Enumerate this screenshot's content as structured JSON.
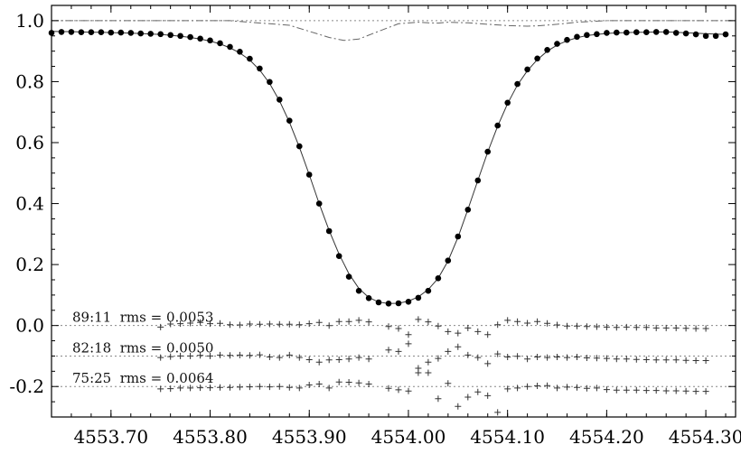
{
  "chart_data": {
    "type": "scatter",
    "title": "",
    "xlabel": "",
    "ylabel": "",
    "xlim": [
      4553.64,
      4554.33
    ],
    "ylim": [
      -0.3,
      1.05
    ],
    "xticks": [
      4553.7,
      4553.8,
      4553.9,
      4554.0,
      4554.1,
      4554.2,
      4554.3
    ],
    "xtick_labels": [
      "4553.70",
      "4553.80",
      "4553.90",
      "4554.00",
      "4554.10",
      "4554.20",
      "4554.30"
    ],
    "yticks": [
      -0.2,
      0.0,
      0.2,
      0.4,
      0.6,
      0.8,
      1.0
    ],
    "ytick_labels": [
      "-0.2",
      "0.0",
      "0.2",
      "0.4",
      "0.6",
      "0.8",
      "1.0"
    ],
    "grid": false,
    "reference_lines": [
      1.0,
      0.0,
      -0.1,
      -0.2
    ],
    "annotations": [
      "89:11  rms = 0.0053",
      "82:18  rms = 0.0050",
      "75:25  rms = 0.0064"
    ],
    "observed_points": {
      "x": [
        4553.64,
        4553.65,
        4553.66,
        4553.67,
        4553.68,
        4553.69,
        4553.7,
        4553.71,
        4553.72,
        4553.73,
        4553.74,
        4553.75,
        4553.76,
        4553.77,
        4553.78,
        4553.79,
        4553.8,
        4553.81,
        4553.82,
        4553.83,
        4553.84,
        4553.85,
        4553.86,
        4553.87,
        4553.88,
        4553.89,
        4553.9,
        4553.91,
        4553.92,
        4553.93,
        4553.94,
        4553.95,
        4553.96,
        4553.97,
        4553.98,
        4553.99,
        4554.0,
        4554.01,
        4554.02,
        4554.03,
        4554.04,
        4554.05,
        4554.06,
        4554.07,
        4554.08,
        4554.09,
        4554.1,
        4554.11,
        4554.12,
        4554.13,
        4554.14,
        4554.15,
        4554.16,
        4554.17,
        4554.18,
        4554.19,
        4554.2,
        4554.21,
        4554.22,
        4554.23,
        4554.24,
        4554.25,
        4554.26,
        4554.27,
        4554.28,
        4554.29,
        4554.3,
        4554.31,
        4554.32
      ],
      "y": [
        0.96,
        0.963,
        0.963,
        0.962,
        0.962,
        0.962,
        0.961,
        0.961,
        0.96,
        0.958,
        0.957,
        0.956,
        0.953,
        0.95,
        0.946,
        0.941,
        0.935,
        0.926,
        0.914,
        0.898,
        0.875,
        0.843,
        0.799,
        0.741,
        0.672,
        0.588,
        0.495,
        0.4,
        0.31,
        0.228,
        0.16,
        0.114,
        0.09,
        0.076,
        0.072,
        0.073,
        0.078,
        0.091,
        0.114,
        0.155,
        0.213,
        0.292,
        0.38,
        0.476,
        0.57,
        0.656,
        0.731,
        0.792,
        0.84,
        0.876,
        0.904,
        0.924,
        0.937,
        0.947,
        0.953,
        0.956,
        0.96,
        0.961,
        0.961,
        0.962,
        0.962,
        0.963,
        0.963,
        0.96,
        0.958,
        0.955,
        0.95,
        0.95,
        0.955
      ]
    },
    "fit_line_y": [
      0.965,
      0.964,
      0.964,
      0.963,
      0.962,
      0.962,
      0.961,
      0.96,
      0.959,
      0.958,
      0.956,
      0.955,
      0.952,
      0.949,
      0.945,
      0.94,
      0.933,
      0.924,
      0.911,
      0.894,
      0.871,
      0.838,
      0.794,
      0.737,
      0.667,
      0.585,
      0.495,
      0.4,
      0.312,
      0.234,
      0.17,
      0.122,
      0.092,
      0.077,
      0.072,
      0.073,
      0.08,
      0.094,
      0.118,
      0.155,
      0.212,
      0.289,
      0.381,
      0.476,
      0.569,
      0.654,
      0.728,
      0.789,
      0.836,
      0.872,
      0.9,
      0.92,
      0.934,
      0.944,
      0.951,
      0.955,
      0.958,
      0.96,
      0.961,
      0.962,
      0.962,
      0.963,
      0.963,
      0.962,
      0.96,
      0.959,
      0.957,
      0.956,
      0.955
    ],
    "component_line": {
      "x": [
        4553.64,
        4553.82,
        4553.88,
        4553.9,
        4553.92,
        4553.935,
        4553.95,
        4553.97,
        4553.99,
        4554.01,
        4554.02,
        4554.03,
        4554.04,
        4554.06,
        4554.08,
        4554.1,
        4554.12,
        4554.13,
        4554.15,
        4554.17,
        4554.2,
        4554.33
      ],
      "y": [
        1.0,
        1.0,
        0.985,
        0.965,
        0.945,
        0.935,
        0.94,
        0.965,
        0.99,
        0.995,
        0.993,
        0.992,
        0.995,
        0.993,
        0.988,
        0.984,
        0.982,
        0.983,
        0.988,
        0.995,
        1.0,
        1.0
      ]
    },
    "residuals": [
      {
        "label": "89:11  rms = 0.0053",
        "offset": 0.0,
        "x": [
          4553.75,
          4553.76,
          4553.77,
          4553.78,
          4553.79,
          4553.8,
          4553.81,
          4553.82,
          4553.83,
          4553.84,
          4553.85,
          4553.86,
          4553.87,
          4553.88,
          4553.89,
          4553.9,
          4553.91,
          4553.92,
          4553.93,
          4553.94,
          4553.95,
          4553.96,
          4553.98,
          4553.99,
          4554.0,
          4554.01,
          4554.02,
          4554.03,
          4554.04,
          4554.05,
          4554.06,
          4554.07,
          4554.08,
          4554.09,
          4554.1,
          4554.11,
          4554.12,
          4554.13,
          4554.14,
          4554.15,
          4554.16,
          4554.17,
          4554.18,
          4554.19,
          4554.2,
          4554.21,
          4554.22,
          4554.23,
          4554.24,
          4554.25,
          4554.26,
          4554.27,
          4554.28,
          4554.29,
          4554.3
        ],
        "y": [
          -0.005,
          0.005,
          0.006,
          0.008,
          0.01,
          0.006,
          0.007,
          0.003,
          0.002,
          0.005,
          0.004,
          0.005,
          0.004,
          0.004,
          0.003,
          0.006,
          0.01,
          0.0,
          0.013,
          0.013,
          0.017,
          0.012,
          -0.003,
          -0.01,
          -0.03,
          0.02,
          0.012,
          -0.002,
          -0.02,
          -0.025,
          -0.008,
          -0.02,
          -0.03,
          0.003,
          0.017,
          0.013,
          0.008,
          0.013,
          0.007,
          0.002,
          -0.002,
          -0.002,
          -0.003,
          -0.004,
          -0.005,
          -0.006,
          -0.005,
          -0.006,
          -0.006,
          -0.008,
          -0.008,
          -0.008,
          -0.009,
          -0.01,
          -0.01
        ]
      },
      {
        "label": "82:18  rms = 0.0050",
        "offset": -0.1,
        "x": [
          4553.75,
          4553.76,
          4553.77,
          4553.78,
          4553.79,
          4553.8,
          4553.81,
          4553.82,
          4553.83,
          4553.84,
          4553.85,
          4553.86,
          4553.87,
          4553.88,
          4553.89,
          4553.9,
          4553.91,
          4553.92,
          4553.93,
          4553.94,
          4553.95,
          4553.96,
          4553.98,
          4553.99,
          4554.0,
          4554.01,
          4554.02,
          4554.03,
          4554.04,
          4554.05,
          4554.06,
          4554.07,
          4554.08,
          4554.09,
          4554.1,
          4554.11,
          4554.12,
          4554.13,
          4554.14,
          4554.15,
          4554.16,
          4554.17,
          4554.18,
          4554.19,
          4554.2,
          4554.21,
          4554.22,
          4554.23,
          4554.24,
          4554.25,
          4554.26,
          4554.27,
          4554.28,
          4554.29,
          4554.3
        ],
        "y": [
          -0.005,
          -0.002,
          0.0,
          0.0,
          0.002,
          0.0,
          0.003,
          0.002,
          0.003,
          0.002,
          0.004,
          -0.003,
          -0.005,
          0.003,
          -0.005,
          -0.012,
          -0.02,
          -0.013,
          -0.012,
          -0.01,
          -0.005,
          -0.01,
          0.02,
          0.015,
          0.04,
          -0.04,
          -0.02,
          -0.008,
          0.015,
          0.03,
          0.003,
          -0.005,
          -0.025,
          0.007,
          -0.003,
          -0.001,
          -0.01,
          -0.003,
          -0.005,
          -0.003,
          -0.005,
          -0.003,
          -0.006,
          -0.007,
          -0.008,
          -0.01,
          -0.01,
          -0.011,
          -0.012,
          -0.013,
          -0.013,
          -0.013,
          -0.014,
          -0.015,
          -0.015
        ]
      },
      {
        "label": "75:25  rms = 0.0064",
        "offset": -0.2,
        "x": [
          4553.75,
          4553.76,
          4553.77,
          4553.78,
          4553.79,
          4553.8,
          4553.81,
          4553.82,
          4553.83,
          4553.84,
          4553.85,
          4553.86,
          4553.87,
          4553.88,
          4553.89,
          4553.9,
          4553.91,
          4553.92,
          4553.93,
          4553.94,
          4553.95,
          4553.96,
          4553.98,
          4553.99,
          4554.0,
          4554.01,
          4554.02,
          4554.03,
          4554.04,
          4554.05,
          4554.06,
          4554.07,
          4554.08,
          4554.09,
          4554.1,
          4554.11,
          4554.12,
          4554.13,
          4554.14,
          4554.15,
          4554.16,
          4554.17,
          4554.18,
          4554.19,
          4554.2,
          4554.21,
          4554.22,
          4554.23,
          4554.24,
          4554.25,
          4554.26,
          4554.27,
          4554.28,
          4554.29,
          4554.3
        ],
        "y": [
          -0.008,
          -0.007,
          -0.005,
          -0.005,
          -0.004,
          -0.004,
          -0.003,
          -0.003,
          -0.002,
          -0.001,
          0.0,
          -0.001,
          0.0,
          -0.003,
          -0.005,
          0.005,
          0.008,
          -0.005,
          0.015,
          0.014,
          0.012,
          0.008,
          -0.006,
          -0.011,
          -0.015,
          0.045,
          0.045,
          -0.04,
          0.01,
          -0.065,
          -0.035,
          -0.018,
          -0.03,
          -0.085,
          -0.008,
          -0.005,
          0.0,
          0.002,
          0.003,
          -0.005,
          -0.002,
          -0.003,
          -0.006,
          -0.005,
          -0.01,
          -0.012,
          -0.012,
          -0.012,
          -0.013,
          -0.013,
          -0.014,
          -0.014,
          -0.015,
          -0.016,
          -0.016
        ]
      }
    ]
  }
}
